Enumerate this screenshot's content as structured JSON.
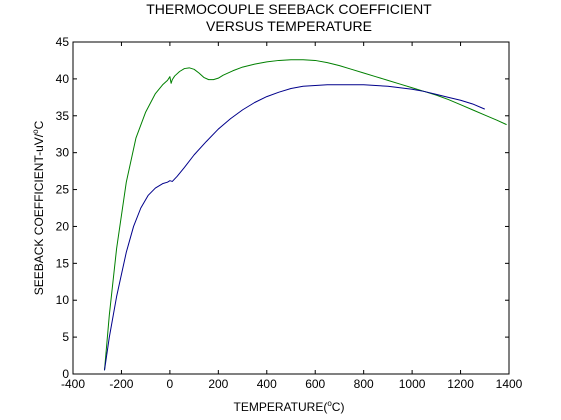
{
  "chart_data": {
    "type": "line",
    "title": "THERMOCOUPLE SEEBACK COEFFICIENT",
    "subtitle": "VERSUS TEMPERATURE",
    "xlabel": {
      "base": "TEMPERATURE(",
      "sup": "o",
      "tail": "C)"
    },
    "ylabel": {
      "base": "SEEBACK COEFFICIENT-uV/",
      "sup": "o",
      "tail": "C"
    },
    "xlim": [
      -400,
      1400
    ],
    "ylim": [
      0,
      45
    ],
    "xticks": [
      -400,
      -200,
      0,
      200,
      400,
      600,
      800,
      1000,
      1200,
      1400
    ],
    "yticks": [
      0,
      5,
      10,
      15,
      20,
      25,
      30,
      35,
      40,
      45
    ],
    "grid": false,
    "legend": "none",
    "series": [
      {
        "color": "#008000",
        "x": [
          -270,
          -250,
          -220,
          -180,
          -140,
          -100,
          -60,
          -30,
          -10,
          0,
          5,
          10,
          20,
          40,
          60,
          80,
          100,
          120,
          140,
          160,
          180,
          200,
          220,
          260,
          300,
          350,
          400,
          450,
          500,
          550,
          600,
          650,
          700,
          750,
          800,
          850,
          900,
          950,
          1000,
          1050,
          1100,
          1150,
          1200,
          1250,
          1300,
          1350,
          1390
        ],
        "y": [
          0.5,
          8,
          17,
          26,
          32,
          35.5,
          38,
          39.2,
          39.8,
          40.3,
          39.4,
          39.9,
          40.4,
          41.0,
          41.4,
          41.5,
          41.3,
          40.8,
          40.2,
          39.9,
          39.9,
          40.1,
          40.5,
          41.1,
          41.6,
          42.0,
          42.3,
          42.5,
          42.6,
          42.6,
          42.5,
          42.2,
          41.8,
          41.3,
          40.8,
          40.3,
          39.8,
          39.3,
          38.8,
          38.3,
          37.8,
          37.2,
          36.5,
          35.8,
          35.1,
          34.4,
          33.8
        ]
      },
      {
        "color": "#00008b",
        "x": [
          -270,
          -250,
          -220,
          -180,
          -150,
          -120,
          -90,
          -60,
          -30,
          -10,
          0,
          10,
          30,
          60,
          100,
          150,
          200,
          250,
          300,
          350,
          400,
          450,
          500,
          550,
          600,
          650,
          700,
          750,
          800,
          850,
          900,
          950,
          1000,
          1050,
          1100,
          1150,
          1200,
          1250,
          1300
        ],
        "y": [
          0.5,
          5,
          10.5,
          16.5,
          20,
          22.5,
          24.2,
          25.2,
          25.8,
          26.0,
          26.2,
          26.1,
          26.8,
          28.0,
          29.7,
          31.5,
          33.2,
          34.6,
          35.8,
          36.8,
          37.6,
          38.2,
          38.7,
          39.0,
          39.1,
          39.2,
          39.2,
          39.2,
          39.2,
          39.1,
          39.0,
          38.8,
          38.6,
          38.3,
          37.9,
          37.5,
          37.1,
          36.6,
          35.9
        ]
      }
    ]
  }
}
